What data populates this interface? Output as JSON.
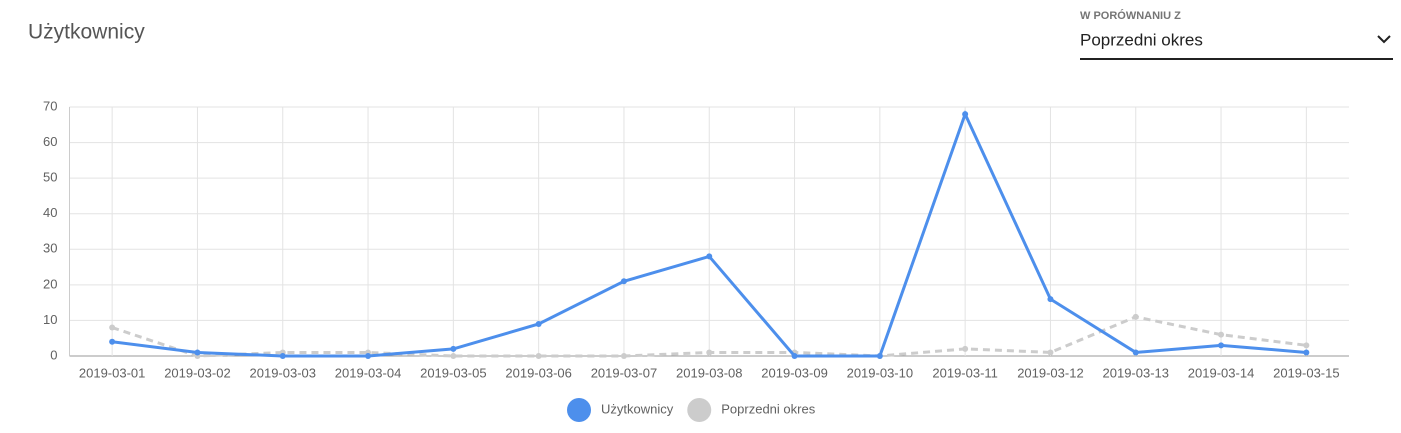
{
  "comparison": {
    "label": "W PORÓWNANIU Z",
    "value": "Poprzedni okres"
  },
  "chart_data": {
    "type": "line",
    "title": "Użytkownicy",
    "categories": [
      "2019-03-01",
      "2019-03-02",
      "2019-03-03",
      "2019-03-04",
      "2019-03-05",
      "2019-03-06",
      "2019-03-07",
      "2019-03-08",
      "2019-03-09",
      "2019-03-10",
      "2019-03-11",
      "2019-03-12",
      "2019-03-13",
      "2019-03-14",
      "2019-03-15"
    ],
    "series": [
      {
        "name": "Użytkownicy",
        "color": "#4d8fec",
        "dashed": false,
        "values": [
          4,
          1,
          0,
          0,
          2,
          9,
          21,
          28,
          0,
          0,
          68,
          16,
          1,
          3,
          1
        ]
      },
      {
        "name": "Poprzedni okres",
        "color": "#cccccc",
        "dashed": true,
        "values": [
          8,
          0,
          1,
          1,
          0,
          0,
          0,
          1,
          1,
          0,
          2,
          1,
          11,
          6,
          3
        ]
      }
    ],
    "ylim": [
      0,
      70
    ],
    "yticks": [
      0,
      10,
      20,
      30,
      40,
      50,
      60,
      70
    ],
    "grid": true
  }
}
